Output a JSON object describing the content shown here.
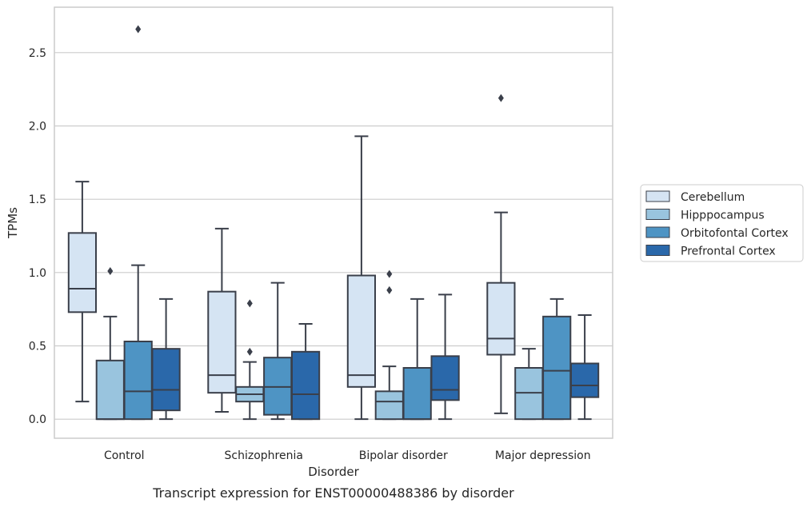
{
  "chart_data": {
    "type": "box",
    "title": "",
    "caption": "Transcript expression for ENST00000488386 by disorder",
    "xlabel": "Disorder",
    "ylabel": "TPMs",
    "ylim": [
      -0.13,
      2.81
    ],
    "yticks": [
      0.0,
      0.5,
      1.0,
      1.5,
      2.0,
      2.5
    ],
    "ytick_labels": [
      "0.0",
      "0.5",
      "1.0",
      "1.5",
      "2.0",
      "2.5"
    ],
    "grid": "horizontal",
    "legend_position": "right",
    "categories": [
      "Control",
      "Schizophrenia",
      "Bipolar disorder",
      "Major depression"
    ],
    "series": [
      {
        "name": "Cerebellum",
        "color": "#d5e4f3",
        "boxes": [
          {
            "whisker_low": 0.12,
            "q1": 0.73,
            "median": 0.89,
            "q3": 1.27,
            "whisker_high": 1.62,
            "outliers": []
          },
          {
            "whisker_low": 0.05,
            "q1": 0.18,
            "median": 0.3,
            "q3": 0.87,
            "whisker_high": 1.3,
            "outliers": []
          },
          {
            "whisker_low": 0.0,
            "q1": 0.22,
            "median": 0.3,
            "q3": 0.98,
            "whisker_high": 1.93,
            "outliers": []
          },
          {
            "whisker_low": 0.04,
            "q1": 0.44,
            "median": 0.55,
            "q3": 0.93,
            "whisker_high": 1.41,
            "outliers": [
              2.19
            ]
          }
        ]
      },
      {
        "name": "Hipppocampus",
        "color": "#99c4de",
        "boxes": [
          {
            "whisker_low": 0.0,
            "q1": 0.0,
            "median": 0.0,
            "q3": 0.4,
            "whisker_high": 0.7,
            "outliers": [
              1.01
            ]
          },
          {
            "whisker_low": 0.0,
            "q1": 0.12,
            "median": 0.17,
            "q3": 0.22,
            "whisker_high": 0.39,
            "outliers": [
              0.46,
              0.79
            ]
          },
          {
            "whisker_low": 0.0,
            "q1": 0.0,
            "median": 0.12,
            "q3": 0.19,
            "whisker_high": 0.36,
            "outliers": [
              0.88,
              0.99
            ]
          },
          {
            "whisker_low": 0.0,
            "q1": 0.0,
            "median": 0.18,
            "q3": 0.35,
            "whisker_high": 0.48,
            "outliers": []
          }
        ]
      },
      {
        "name": "Orbitofontal Cortex",
        "color": "#4e94c4",
        "boxes": [
          {
            "whisker_low": 0.0,
            "q1": 0.0,
            "median": 0.19,
            "q3": 0.53,
            "whisker_high": 1.05,
            "outliers": [
              2.66
            ]
          },
          {
            "whisker_low": 0.0,
            "q1": 0.03,
            "median": 0.22,
            "q3": 0.42,
            "whisker_high": 0.93,
            "outliers": []
          },
          {
            "whisker_low": 0.0,
            "q1": 0.0,
            "median": 0.0,
            "q3": 0.35,
            "whisker_high": 0.82,
            "outliers": []
          },
          {
            "whisker_low": 0.0,
            "q1": 0.0,
            "median": 0.33,
            "q3": 0.7,
            "whisker_high": 0.82,
            "outliers": []
          }
        ]
      },
      {
        "name": "Prefrontal Cortex",
        "color": "#2a68aa",
        "boxes": [
          {
            "whisker_low": 0.0,
            "q1": 0.06,
            "median": 0.2,
            "q3": 0.48,
            "whisker_high": 0.82,
            "outliers": []
          },
          {
            "whisker_low": 0.0,
            "q1": 0.0,
            "median": 0.17,
            "q3": 0.46,
            "whisker_high": 0.65,
            "outliers": []
          },
          {
            "whisker_low": 0.0,
            "q1": 0.13,
            "median": 0.2,
            "q3": 0.43,
            "whisker_high": 0.85,
            "outliers": []
          },
          {
            "whisker_low": 0.0,
            "q1": 0.15,
            "median": 0.23,
            "q3": 0.38,
            "whisker_high": 0.71,
            "outliers": []
          }
        ]
      }
    ],
    "colors": {
      "grid": "#cccccc",
      "frame": "#cccccc",
      "box_edge": "#3a3f4a",
      "text": "#262626"
    }
  }
}
